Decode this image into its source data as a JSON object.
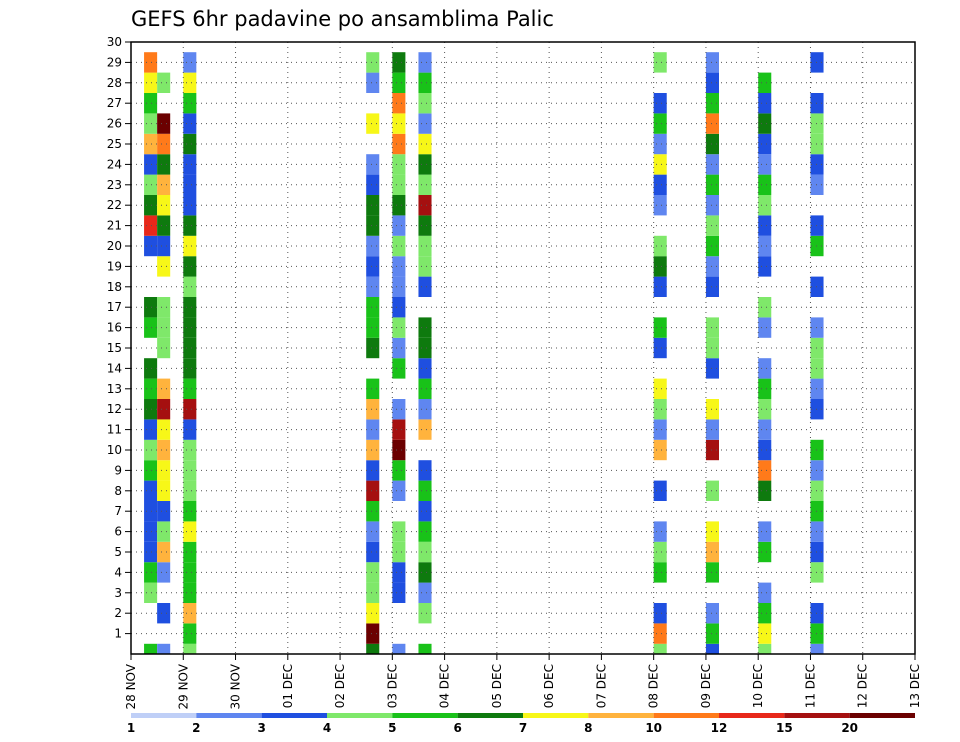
{
  "chart_data": {
    "type": "heatmap",
    "title": "GEFS 6hr padavine po ansamblima Palic",
    "xlabel": "",
    "ylabel": "",
    "x_ticks": [
      "28 NOV",
      "29 NOV",
      "30 NOV",
      "01 DEC",
      "02 DEC",
      "03 DEC",
      "04 DEC",
      "05 DEC",
      "06 DEC",
      "07 DEC",
      "08 DEC",
      "09 DEC",
      "10 DEC",
      "11 DEC",
      "12 DEC",
      "13 DEC"
    ],
    "y_ticks": [
      "1",
      "2",
      "3",
      "4",
      "5",
      "6",
      "7",
      "8",
      "9",
      "10",
      "11",
      "12",
      "13",
      "14",
      "15",
      "16",
      "17",
      "18",
      "19",
      "20",
      "21",
      "22",
      "23",
      "24",
      "25",
      "26",
      "27",
      "28",
      "29",
      "30"
    ],
    "xlim": [
      0,
      15
    ],
    "ylim": [
      0,
      30
    ],
    "grid": true,
    "levels": [
      1,
      2,
      3,
      4,
      5,
      6,
      7,
      8,
      10,
      12,
      15,
      20
    ],
    "level_colors": [
      "#bfcff7",
      "#5f86f0",
      "#1f4fe0",
      "#7fe86a",
      "#19c219",
      "#0e7a0e",
      "#f7f718",
      "#ffb33d",
      "#ff7a1a",
      "#e8281a",
      "#a51010",
      "#6b0000"
    ],
    "legend_labels": [
      "1",
      "2",
      "3",
      "4",
      "5",
      "6",
      "7",
      "8",
      "10",
      "12",
      "15",
      "20"
    ],
    "cell_width_days": 0.25,
    "cells": [
      [
        0.25,
        0,
        4
      ],
      [
        0.25,
        3,
        3
      ],
      [
        0.25,
        4,
        4
      ],
      [
        0.25,
        5,
        2
      ],
      [
        0.25,
        6,
        2
      ],
      [
        0.25,
        7,
        2
      ],
      [
        0.25,
        8,
        2
      ],
      [
        0.25,
        9,
        4
      ],
      [
        0.25,
        10,
        3
      ],
      [
        0.25,
        11,
        2
      ],
      [
        0.25,
        12,
        5
      ],
      [
        0.25,
        13,
        4
      ],
      [
        0.25,
        14,
        5
      ],
      [
        0.25,
        16,
        4
      ],
      [
        0.25,
        17,
        5
      ],
      [
        0.25,
        20,
        2
      ],
      [
        0.25,
        21,
        9
      ],
      [
        0.25,
        22,
        5
      ],
      [
        0.25,
        23,
        3
      ],
      [
        0.25,
        24,
        2
      ],
      [
        0.25,
        25,
        7
      ],
      [
        0.25,
        26,
        3
      ],
      [
        0.25,
        27,
        4
      ],
      [
        0.25,
        28,
        6
      ],
      [
        0.25,
        29,
        8
      ],
      [
        0.5,
        0,
        1
      ],
      [
        0.5,
        2,
        2
      ],
      [
        0.5,
        4,
        1
      ],
      [
        0.5,
        5,
        7
      ],
      [
        0.5,
        6,
        3
      ],
      [
        0.5,
        7,
        2
      ],
      [
        0.5,
        8,
        6
      ],
      [
        0.5,
        9,
        6
      ],
      [
        0.5,
        10,
        7
      ],
      [
        0.5,
        11,
        6
      ],
      [
        0.5,
        12,
        10
      ],
      [
        0.5,
        13,
        7
      ],
      [
        0.5,
        15,
        3
      ],
      [
        0.5,
        16,
        3
      ],
      [
        0.5,
        17,
        3
      ],
      [
        0.5,
        19,
        6
      ],
      [
        0.5,
        20,
        2
      ],
      [
        0.5,
        21,
        5
      ],
      [
        0.5,
        22,
        6
      ],
      [
        0.5,
        23,
        7
      ],
      [
        0.5,
        24,
        5
      ],
      [
        0.5,
        25,
        8
      ],
      [
        0.5,
        26,
        11
      ],
      [
        0.5,
        28,
        3
      ],
      [
        1,
        0,
        3
      ],
      [
        1,
        1,
        4
      ],
      [
        1,
        2,
        7
      ],
      [
        1,
        3,
        4
      ],
      [
        1,
        4,
        4
      ],
      [
        1,
        5,
        4
      ],
      [
        1,
        6,
        6
      ],
      [
        1,
        7,
        4
      ],
      [
        1,
        8,
        3
      ],
      [
        1,
        9,
        3
      ],
      [
        1,
        10,
        3
      ],
      [
        1,
        11,
        2
      ],
      [
        1,
        12,
        10
      ],
      [
        1,
        13,
        4
      ],
      [
        1,
        14,
        5
      ],
      [
        1,
        15,
        5
      ],
      [
        1,
        16,
        5
      ],
      [
        1,
        17,
        5
      ],
      [
        1,
        18,
        3
      ],
      [
        1,
        19,
        5
      ],
      [
        1,
        20,
        6
      ],
      [
        1,
        21,
        5
      ],
      [
        1,
        22,
        2
      ],
      [
        1,
        23,
        2
      ],
      [
        1,
        24,
        2
      ],
      [
        1,
        25,
        5
      ],
      [
        1,
        26,
        2
      ],
      [
        1,
        27,
        4
      ],
      [
        1,
        28,
        6
      ],
      [
        1,
        29,
        1
      ],
      [
        4.5,
        0,
        5
      ],
      [
        4.5,
        1,
        11
      ],
      [
        4.5,
        2,
        6
      ],
      [
        4.5,
        3,
        3
      ],
      [
        4.5,
        4,
        3
      ],
      [
        4.5,
        5,
        2
      ],
      [
        4.5,
        6,
        1
      ],
      [
        4.5,
        7,
        4
      ],
      [
        4.5,
        8,
        10
      ],
      [
        4.5,
        9,
        2
      ],
      [
        4.5,
        10,
        7
      ],
      [
        4.5,
        11,
        1
      ],
      [
        4.5,
        12,
        7
      ],
      [
        4.5,
        13,
        4
      ],
      [
        4.5,
        15,
        5
      ],
      [
        4.5,
        16,
        4
      ],
      [
        4.5,
        17,
        4
      ],
      [
        4.5,
        18,
        1
      ],
      [
        4.5,
        19,
        2
      ],
      [
        4.5,
        20,
        1
      ],
      [
        4.5,
        21,
        5
      ],
      [
        4.5,
        22,
        5
      ],
      [
        4.5,
        23,
        2
      ],
      [
        4.5,
        24,
        1
      ],
      [
        4.5,
        26,
        6
      ],
      [
        4.5,
        28,
        1
      ],
      [
        4.5,
        29,
        3
      ],
      [
        5,
        0,
        1
      ],
      [
        5,
        3,
        2
      ],
      [
        5,
        4,
        2
      ],
      [
        5,
        5,
        3
      ],
      [
        5,
        6,
        3
      ],
      [
        5,
        8,
        1
      ],
      [
        5,
        9,
        4
      ],
      [
        5,
        10,
        11
      ],
      [
        5,
        11,
        10
      ],
      [
        5,
        12,
        1
      ],
      [
        5,
        14,
        4
      ],
      [
        5,
        15,
        1
      ],
      [
        5,
        16,
        3
      ],
      [
        5,
        17,
        2
      ],
      [
        5,
        18,
        1
      ],
      [
        5,
        19,
        1
      ],
      [
        5,
        20,
        3
      ],
      [
        5,
        21,
        1
      ],
      [
        5,
        22,
        5
      ],
      [
        5,
        23,
        3
      ],
      [
        5,
        24,
        3
      ],
      [
        5,
        25,
        8
      ],
      [
        5,
        26,
        6
      ],
      [
        5,
        27,
        8
      ],
      [
        5,
        28,
        4
      ],
      [
        5,
        29,
        5
      ],
      [
        5.5,
        0,
        4
      ],
      [
        5.5,
        2,
        3
      ],
      [
        5.5,
        3,
        1
      ],
      [
        5.5,
        4,
        5
      ],
      [
        5.5,
        5,
        3
      ],
      [
        5.5,
        6,
        4
      ],
      [
        5.5,
        7,
        2
      ],
      [
        5.5,
        8,
        4
      ],
      [
        5.5,
        9,
        2
      ],
      [
        5.5,
        11,
        7
      ],
      [
        5.5,
        12,
        1
      ],
      [
        5.5,
        13,
        4
      ],
      [
        5.5,
        14,
        2
      ],
      [
        5.5,
        15,
        5
      ],
      [
        5.5,
        16,
        5
      ],
      [
        5.5,
        18,
        2
      ],
      [
        5.5,
        19,
        3
      ],
      [
        5.5,
        20,
        3
      ],
      [
        5.5,
        21,
        5
      ],
      [
        5.5,
        22,
        10
      ],
      [
        5.5,
        23,
        3
      ],
      [
        5.5,
        24,
        5
      ],
      [
        5.5,
        25,
        6
      ],
      [
        5.5,
        26,
        1
      ],
      [
        5.5,
        27,
        3
      ],
      [
        5.5,
        28,
        4
      ],
      [
        5.5,
        29,
        1
      ],
      [
        10,
        0,
        3
      ],
      [
        10,
        1,
        8
      ],
      [
        10,
        2,
        2
      ],
      [
        10,
        4,
        4
      ],
      [
        10,
        5,
        3
      ],
      [
        10,
        6,
        1
      ],
      [
        10,
        8,
        2
      ],
      [
        10,
        10,
        7
      ],
      [
        10,
        11,
        1
      ],
      [
        10,
        12,
        3
      ],
      [
        10,
        13,
        6
      ],
      [
        10,
        15,
        2
      ],
      [
        10,
        16,
        4
      ],
      [
        10,
        18,
        2
      ],
      [
        10,
        19,
        5
      ],
      [
        10,
        20,
        3
      ],
      [
        10,
        22,
        1
      ],
      [
        10,
        23,
        2
      ],
      [
        10,
        24,
        6
      ],
      [
        10,
        25,
        1
      ],
      [
        10,
        26,
        4
      ],
      [
        10,
        27,
        2
      ],
      [
        10,
        29,
        3
      ],
      [
        11,
        0,
        2
      ],
      [
        11,
        1,
        4
      ],
      [
        11,
        2,
        1
      ],
      [
        11,
        4,
        4
      ],
      [
        11,
        5,
        7
      ],
      [
        11,
        6,
        6
      ],
      [
        11,
        8,
        3
      ],
      [
        11,
        10,
        10
      ],
      [
        11,
        11,
        1
      ],
      [
        11,
        12,
        6
      ],
      [
        11,
        14,
        2
      ],
      [
        11,
        15,
        3
      ],
      [
        11,
        16,
        3
      ],
      [
        11,
        18,
        2
      ],
      [
        11,
        19,
        1
      ],
      [
        11,
        20,
        4
      ],
      [
        11,
        21,
        3
      ],
      [
        11,
        22,
        1
      ],
      [
        11,
        23,
        4
      ],
      [
        11,
        24,
        1
      ],
      [
        11,
        25,
        5
      ],
      [
        11,
        26,
        8
      ],
      [
        11,
        27,
        4
      ],
      [
        11,
        28,
        2
      ],
      [
        11,
        29,
        1
      ],
      [
        12,
        0,
        3
      ],
      [
        12,
        1,
        6
      ],
      [
        12,
        2,
        4
      ],
      [
        12,
        3,
        1
      ],
      [
        12,
        5,
        4
      ],
      [
        12,
        6,
        1
      ],
      [
        12,
        8,
        5
      ],
      [
        12,
        9,
        8
      ],
      [
        12,
        10,
        2
      ],
      [
        12,
        11,
        1
      ],
      [
        12,
        12,
        3
      ],
      [
        12,
        13,
        4
      ],
      [
        12,
        14,
        1
      ],
      [
        12,
        16,
        1
      ],
      [
        12,
        17,
        3
      ],
      [
        12,
        19,
        2
      ],
      [
        12,
        20,
        1
      ],
      [
        12,
        21,
        2
      ],
      [
        12,
        22,
        3
      ],
      [
        12,
        23,
        4
      ],
      [
        12,
        24,
        1
      ],
      [
        12,
        25,
        2
      ],
      [
        12,
        26,
        5
      ],
      [
        12,
        27,
        2
      ],
      [
        12,
        28,
        4
      ],
      [
        13,
        0,
        1
      ],
      [
        13,
        1,
        4
      ],
      [
        13,
        2,
        2
      ],
      [
        13,
        4,
        3
      ],
      [
        13,
        5,
        2
      ],
      [
        13,
        6,
        1
      ],
      [
        13,
        7,
        4
      ],
      [
        13,
        8,
        3
      ],
      [
        13,
        9,
        1
      ],
      [
        13,
        10,
        4
      ],
      [
        13,
        12,
        2
      ],
      [
        13,
        13,
        1
      ],
      [
        13,
        14,
        3
      ],
      [
        13,
        15,
        3
      ],
      [
        13,
        16,
        1
      ],
      [
        13,
        18,
        2
      ],
      [
        13,
        20,
        4
      ],
      [
        13,
        21,
        2
      ],
      [
        13,
        23,
        1
      ],
      [
        13,
        24,
        2
      ],
      [
        13,
        25,
        3
      ],
      [
        13,
        26,
        3
      ],
      [
        13,
        27,
        2
      ],
      [
        13,
        29,
        2
      ]
    ]
  },
  "title": "GEFS 6hr padavine po ansamblima Palic"
}
